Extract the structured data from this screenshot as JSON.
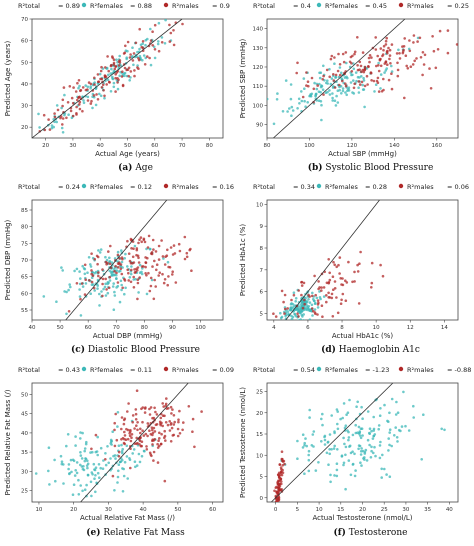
{
  "chart_data": [
    {
      "id": "a",
      "type": "scatter",
      "caption_letter": "(a)",
      "caption_text": "Age",
      "xlabel": "Actual Age (years)",
      "ylabel": "Predicted Age (years)",
      "xlim": [
        15,
        85
      ],
      "ylim": [
        15,
        70
      ],
      "xticks": [
        20,
        30,
        40,
        50,
        60,
        70,
        80
      ],
      "yticks": [
        20,
        30,
        40,
        50,
        60,
        70
      ],
      "identity_line": true,
      "legend": [
        {
          "label": "R²total",
          "value": "0.89"
        },
        {
          "label": "R²females",
          "value": "0.88"
        },
        {
          "label": "R²males",
          "value": "0.9"
        }
      ],
      "series": [
        {
          "name": "females",
          "center": [
            42,
            42
          ],
          "spread": [
            11,
            11
          ],
          "corr": 0.94,
          "n": 150
        },
        {
          "name": "males",
          "center": [
            43,
            43
          ],
          "spread": [
            12,
            12
          ],
          "corr": 0.94,
          "n": 150
        }
      ]
    },
    {
      "id": "b",
      "type": "scatter",
      "caption_letter": "(b)",
      "caption_text": "Systolic Blood Pressure",
      "xlabel": "Actual SBP (mmHg)",
      "ylabel": "Predicted SBP (mmHg)",
      "xlim": [
        80,
        170
      ],
      "ylim": [
        83,
        145
      ],
      "xticks": [
        80,
        100,
        120,
        140,
        160
      ],
      "yticks": [
        90,
        100,
        110,
        120,
        130,
        140
      ],
      "identity_line": true,
      "legend": [
        {
          "label": "R²total",
          "value": "0.4"
        },
        {
          "label": "R²females",
          "value": "0.45"
        },
        {
          "label": "R²males",
          "value": "0.25"
        }
      ],
      "series": [
        {
          "name": "females",
          "center": [
            113,
            110
          ],
          "spread": [
            13,
            8
          ],
          "corr": 0.65,
          "n": 160
        },
        {
          "name": "males",
          "center": [
            130,
            121
          ],
          "spread": [
            15,
            8
          ],
          "corr": 0.5,
          "n": 160
        }
      ]
    },
    {
      "id": "c",
      "type": "scatter",
      "caption_letter": "(c)",
      "caption_text": "Diastolic Blood Pressure",
      "xlabel": "Actual DBP (mmHg)",
      "ylabel": "Predicted DBP (mmHg)",
      "xlim": [
        40,
        108
      ],
      "ylim": [
        52,
        88
      ],
      "xticks": [
        40,
        50,
        60,
        70,
        80,
        90,
        100
      ],
      "yticks": [
        55,
        60,
        65,
        70,
        75,
        80,
        85
      ],
      "identity_line": true,
      "legend": [
        {
          "label": "R²total",
          "value": "0.24"
        },
        {
          "label": "R²females",
          "value": "0.12"
        },
        {
          "label": "R²males",
          "value": "0.16"
        }
      ],
      "series": [
        {
          "name": "females",
          "center": [
            67,
            65
          ],
          "spread": [
            8,
            4
          ],
          "corr": 0.4,
          "n": 160
        },
        {
          "name": "males",
          "center": [
            76,
            68
          ],
          "spread": [
            10,
            5
          ],
          "corr": 0.4,
          "n": 160
        }
      ]
    },
    {
      "id": "d",
      "type": "scatter",
      "caption_letter": "(d)",
      "caption_text": "Haemoglobin A1c",
      "xlabel": "Actual HbA1c (%)",
      "ylabel": "Predicted HbA1c (%)",
      "xlim": [
        3.6,
        14.8
      ],
      "ylim": [
        4.7,
        10.2
      ],
      "xticks": [
        4,
        6,
        8,
        10,
        12,
        14
      ],
      "yticks": [
        5,
        6,
        7,
        8,
        9,
        10
      ],
      "identity_line": true,
      "legend": [
        {
          "label": "R²total",
          "value": "0.34"
        },
        {
          "label": "R²females",
          "value": "0.28"
        },
        {
          "label": "R²males",
          "value": "0.06"
        }
      ],
      "series": [
        {
          "name": "females",
          "center": [
            5.6,
            5.3
          ],
          "spread": [
            0.5,
            0.3
          ],
          "corr": 0.5,
          "n": 150
        },
        {
          "name": "males",
          "center": [
            6.5,
            5.8
          ],
          "spread": [
            1.6,
            0.9
          ],
          "corr": 0.6,
          "n": 110
        }
      ]
    },
    {
      "id": "e",
      "type": "scatter",
      "caption_letter": "(e)",
      "caption_text": "Relative Fat Mass",
      "xlabel": "Actual Relative Fat Mass (/)",
      "ylabel": "Predicted Relative Fat Mass (/)",
      "xlim": [
        8,
        63
      ],
      "ylim": [
        22,
        53
      ],
      "xticks": [
        10,
        20,
        30,
        40,
        50,
        60
      ],
      "yticks": [
        25,
        30,
        35,
        40,
        45,
        50
      ],
      "identity_line": true,
      "legend": [
        {
          "label": "R²total",
          "value": "0.43"
        },
        {
          "label": "R²females",
          "value": "0.11"
        },
        {
          "label": "R²males",
          "value": "0.09"
        }
      ],
      "series": [
        {
          "name": "females",
          "center": [
            28,
            33
          ],
          "spread": [
            7,
            4
          ],
          "corr": 0.3,
          "n": 150
        },
        {
          "name": "males",
          "center": [
            42,
            41
          ],
          "spread": [
            6,
            4
          ],
          "corr": 0.3,
          "n": 170
        }
      ]
    },
    {
      "id": "f",
      "type": "scatter",
      "caption_letter": "(f)",
      "caption_text": "Testosterone",
      "xlabel": "Actual Testosterone (nmol/L)",
      "ylabel": "Predicted Testosterone (nmol/L)",
      "xlim": [
        -2,
        42
      ],
      "ylim": [
        -1,
        27
      ],
      "xticks": [
        0,
        5,
        10,
        15,
        20,
        25,
        30,
        35,
        40
      ],
      "yticks": [
        0,
        5,
        10,
        15,
        20,
        25
      ],
      "identity_line": true,
      "legend": [
        {
          "label": "R²total",
          "value": "0.54"
        },
        {
          "label": "R²females",
          "value": "-1.23"
        },
        {
          "label": "R²males",
          "value": "-0.88"
        }
      ],
      "series": [
        {
          "name": "females",
          "center": [
            18,
            14
          ],
          "spread": [
            7,
            5
          ],
          "corr": 0.2,
          "n": 190
        },
        {
          "name": "males",
          "center": [
            0.8,
            3
          ],
          "spread": [
            0.5,
            3
          ],
          "corr": 0.7,
          "n": 90
        }
      ]
    }
  ],
  "colors": {
    "females": "#3cb8b8",
    "males": "#b02828",
    "line": "#333333",
    "spine": "#444444"
  }
}
